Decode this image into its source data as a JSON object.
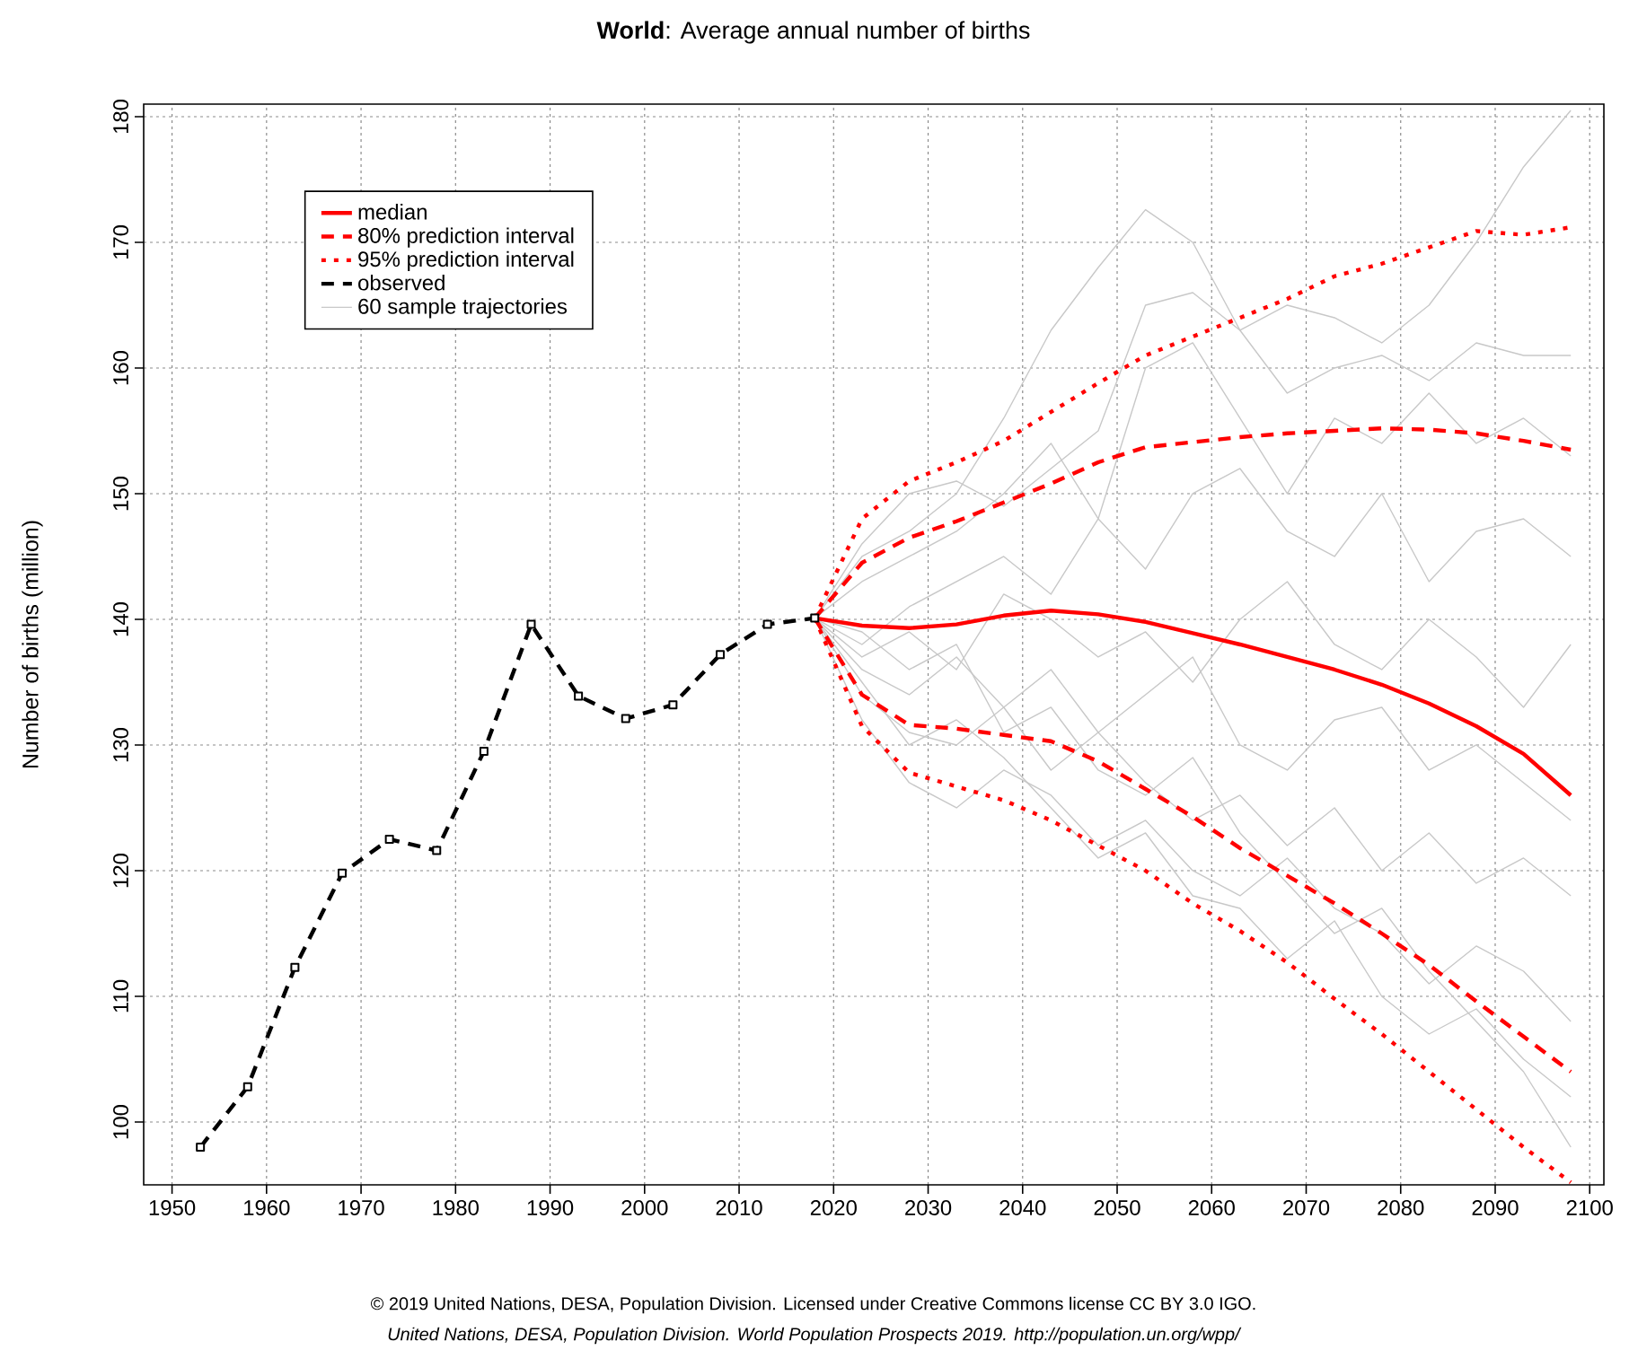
{
  "chart_data": {
    "type": "line",
    "title": "**World**: Average annual number of births",
    "ylabel": "Number of births (million)",
    "xlim": [
      1947,
      2101.5
    ],
    "ylim": [
      95,
      181
    ],
    "xticks": [
      1950,
      1960,
      1970,
      1980,
      1990,
      2000,
      2010,
      2020,
      2030,
      2040,
      2050,
      2060,
      2070,
      2080,
      2090,
      2100
    ],
    "yticks": [
      100,
      110,
      120,
      130,
      140,
      150,
      160,
      170,
      180
    ],
    "grid": true,
    "legend": "top left",
    "annotations": [
      "© 2019 United Nations, DESA, Population Division. Licensed under Creative Commons license CC BY 3.0 IGO.",
      "United Nations, DESA, Population Division. World Population Prospects 2019. http://population.un.org/wpp/"
    ],
    "series": [
      {
        "name": "median",
        "color": "#ff0000",
        "line_style": "solid",
        "x": [
          2018,
          2023,
          2028,
          2033,
          2038,
          2043,
          2048,
          2053,
          2058,
          2063,
          2068,
          2073,
          2078,
          2083,
          2088,
          2093,
          2098
        ],
        "values": [
          140.1,
          139.5,
          139.3,
          139.6,
          140.3,
          140.7,
          140.4,
          139.8,
          138.9,
          138,
          137,
          136,
          134.8,
          133.3,
          131.5,
          129.3,
          126
        ]
      },
      {
        "name": "80% prediction interval",
        "color": "#ff0000",
        "line_style": "dashed",
        "x": [
          2018,
          2023,
          2028,
          2033,
          2038,
          2043,
          2048,
          2053,
          2058,
          2063,
          2068,
          2073,
          2078,
          2083,
          2088,
          2093,
          2098
        ],
        "values": [
          140.1,
          144.5,
          146.5,
          147.8,
          149.3,
          150.8,
          152.5,
          153.7,
          154.1,
          154.5,
          154.8,
          155,
          155.2,
          155.1,
          154.8,
          154.2,
          153.5
        ]
      },
      {
        "color": "#ff0000",
        "line_style": "dashed",
        "x": [
          2018,
          2023,
          2028,
          2033,
          2038,
          2043,
          2048,
          2053,
          2058,
          2063,
          2068,
          2073,
          2078,
          2083,
          2088,
          2093,
          2098
        ],
        "values": [
          140.1,
          134,
          131.6,
          131.3,
          130.8,
          130.3,
          128.7,
          126.5,
          124.3,
          121.8,
          119.6,
          117.4,
          115,
          112.5,
          109.6,
          106.8,
          104
        ]
      },
      {
        "name": "95% prediction interval",
        "color": "#ff0000",
        "line_style": "dotted",
        "x": [
          2018,
          2023,
          2028,
          2033,
          2038,
          2043,
          2048,
          2053,
          2058,
          2063,
          2068,
          2073,
          2078,
          2083,
          2088,
          2093,
          2098
        ],
        "values": [
          140.1,
          148,
          151,
          152.5,
          154.2,
          156.5,
          158.8,
          161,
          162.5,
          164,
          165.5,
          167.3,
          168.3,
          169.6,
          170.9,
          170.6,
          171.2
        ]
      },
      {
        "color": "#ff0000",
        "line_style": "dotted",
        "x": [
          2018,
          2023,
          2028,
          2033,
          2038,
          2043,
          2048,
          2053,
          2058,
          2063,
          2068,
          2073,
          2078,
          2083,
          2088,
          2093,
          2098
        ],
        "values": [
          140.1,
          131.5,
          127.8,
          126.7,
          125.6,
          124,
          122,
          120,
          117.4,
          115.2,
          112.7,
          109.8,
          107,
          104,
          101,
          98,
          95.2
        ]
      },
      {
        "name": "observed",
        "color": "#000000",
        "line_style": "dashed",
        "marker": "square",
        "x": [
          1953,
          1958,
          1963,
          1968,
          1973,
          1978,
          1983,
          1988,
          1993,
          1998,
          2003,
          2008,
          2013,
          2018
        ],
        "values": [
          98,
          102.8,
          112.3,
          119.8,
          122.5,
          121.6,
          129.5,
          139.6,
          133.9,
          132.1,
          133.2,
          137.2,
          139.6,
          140.1
        ]
      },
      {
        "name": "60 sample trajectories",
        "color": "#c8c8c8",
        "line_style": "solid",
        "x": [
          2018,
          2023,
          2028,
          2033,
          2038,
          2043,
          2048,
          2053,
          2058,
          2063,
          2068,
          2073,
          2078,
          2083,
          2088,
          2093,
          2098
        ],
        "values": [
          140.1,
          145,
          147,
          150,
          156,
          163,
          168,
          172.6,
          170,
          163,
          165,
          164,
          162,
          165,
          170,
          176,
          180.5
        ]
      },
      {
        "color": "#c8c8c8",
        "line_style": "solid",
        "x": [
          2018,
          2023,
          2028,
          2033,
          2038,
          2043,
          2048,
          2053,
          2058,
          2063,
          2068,
          2073,
          2078,
          2083,
          2088,
          2093,
          2098
        ],
        "values": [
          140.1,
          146,
          150,
          151,
          149,
          152,
          155,
          165,
          166,
          163,
          158,
          160,
          161,
          159,
          162,
          161,
          161
        ]
      },
      {
        "color": "#c8c8c8",
        "line_style": "solid",
        "x": [
          2018,
          2023,
          2028,
          2033,
          2038,
          2043,
          2048,
          2053,
          2058,
          2063,
          2068,
          2073,
          2078,
          2083,
          2088,
          2093,
          2098
        ],
        "values": [
          140.1,
          143,
          145,
          147,
          150,
          154,
          148,
          160,
          162,
          156,
          150,
          156,
          154,
          158,
          154,
          156,
          153
        ]
      },
      {
        "color": "#c8c8c8",
        "line_style": "solid",
        "x": [
          2018,
          2023,
          2028,
          2033,
          2038,
          2043,
          2048,
          2053,
          2058,
          2063,
          2068,
          2073,
          2078,
          2083,
          2088,
          2093,
          2098
        ],
        "values": [
          140.1,
          138,
          141,
          143,
          145,
          142,
          148,
          144,
          150,
          152,
          147,
          145,
          150,
          143,
          147,
          148,
          145
        ]
      },
      {
        "color": "#c8c8c8",
        "line_style": "solid",
        "x": [
          2018,
          2023,
          2028,
          2033,
          2038,
          2043,
          2048,
          2053,
          2058,
          2063,
          2068,
          2073,
          2078,
          2083,
          2088,
          2093,
          2098
        ],
        "values": [
          140.1,
          137,
          139,
          136,
          142,
          140,
          137,
          139,
          135,
          140,
          143,
          138,
          136,
          140,
          137,
          133,
          138
        ]
      },
      {
        "color": "#c8c8c8",
        "line_style": "solid",
        "x": [
          2018,
          2023,
          2028,
          2033,
          2038,
          2043,
          2048,
          2053,
          2058,
          2063,
          2068,
          2073,
          2078,
          2083,
          2088,
          2093,
          2098
        ],
        "values": [
          140.1,
          136,
          134,
          137,
          133,
          136,
          131,
          134,
          137,
          130,
          128,
          132,
          133,
          128,
          130,
          127,
          124
        ]
      },
      {
        "color": "#c8c8c8",
        "line_style": "solid",
        "x": [
          2018,
          2023,
          2028,
          2033,
          2038,
          2043,
          2048,
          2053,
          2058,
          2063,
          2068,
          2073,
          2078,
          2083,
          2088,
          2093,
          2098
        ],
        "values": [
          140.1,
          134,
          131,
          130,
          133,
          128,
          131,
          127,
          124,
          126,
          122,
          125,
          120,
          123,
          119,
          121,
          118
        ]
      },
      {
        "color": "#c8c8c8",
        "line_style": "solid",
        "x": [
          2018,
          2023,
          2028,
          2033,
          2038,
          2043,
          2048,
          2053,
          2058,
          2063,
          2068,
          2073,
          2078,
          2083,
          2088,
          2093,
          2098
        ],
        "values": [
          140.1,
          132,
          127,
          125,
          128,
          126,
          122,
          124,
          120,
          118,
          121,
          117,
          115,
          111,
          114,
          112,
          108
        ]
      },
      {
        "color": "#c8c8c8",
        "line_style": "solid",
        "x": [
          2018,
          2023,
          2028,
          2033,
          2038,
          2043,
          2048,
          2053,
          2058,
          2063,
          2068,
          2073,
          2078,
          2083,
          2088,
          2093,
          2098
        ],
        "values": [
          140.1,
          135,
          130,
          132,
          129,
          125,
          121,
          123,
          118,
          117,
          113,
          116,
          110,
          107,
          109,
          105,
          102
        ]
      },
      {
        "color": "#c8c8c8",
        "line_style": "solid",
        "x": [
          2018,
          2023,
          2028,
          2033,
          2038,
          2043,
          2048,
          2053,
          2058,
          2063,
          2068,
          2073,
          2078,
          2083,
          2088,
          2093,
          2098
        ],
        "values": [
          140.1,
          139,
          136,
          138,
          131,
          133,
          128,
          126,
          129,
          123,
          119,
          115,
          117,
          112,
          108,
          104,
          98
        ]
      }
    ]
  }
}
